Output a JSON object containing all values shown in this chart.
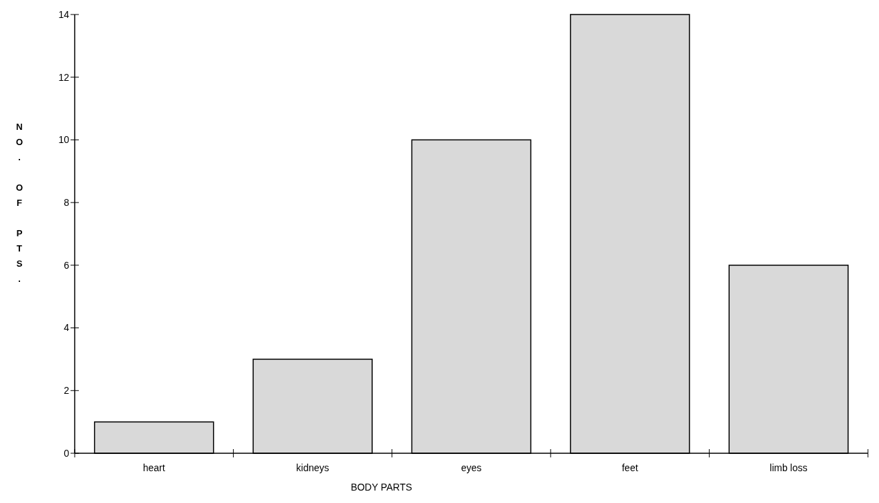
{
  "chart_data": {
    "type": "bar",
    "xlabel": "BODY PARTS",
    "ylabel": "NO. OF PTS.",
    "categories": [
      "heart",
      "kidneys",
      "eyes",
      "feet",
      "limb loss"
    ],
    "values": [
      1,
      3,
      10,
      14,
      6
    ],
    "color": "#d9d9d9",
    "ylim": [
      0,
      14
    ],
    "yticks": [
      0,
      2,
      4,
      6,
      8,
      10,
      12,
      14
    ]
  }
}
